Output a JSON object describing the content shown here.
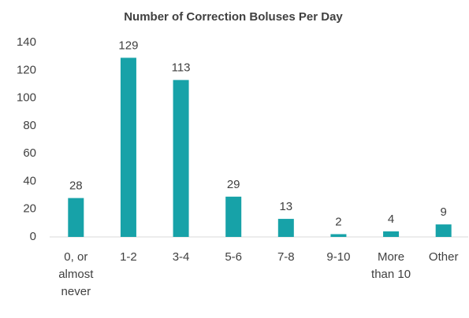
{
  "chart_data": {
    "type": "bar",
    "title": "Number of Correction Boluses Per Day",
    "categories": [
      "0, or almost never",
      "1-2",
      "3-4",
      "5-6",
      "7-8",
      "9-10",
      "More than 10",
      "Other"
    ],
    "values": [
      28,
      129,
      113,
      29,
      13,
      2,
      4,
      9
    ],
    "color": "#17a2a8",
    "ylim": [
      0,
      140
    ],
    "yticks": [
      0,
      20,
      40,
      60,
      80,
      100,
      120,
      140
    ],
    "grid": false
  }
}
